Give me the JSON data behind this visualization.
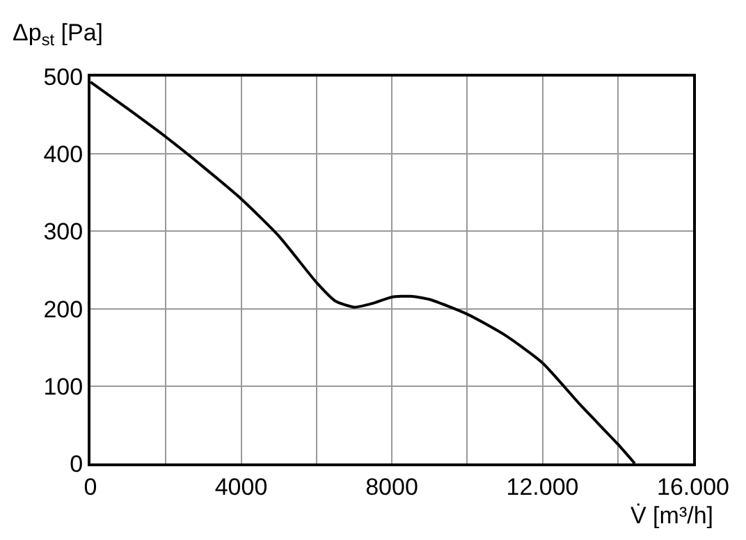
{
  "chart_data": {
    "type": "line",
    "xlabel": "V̇ [m³/h]",
    "ylabel": "Δp$_{st}$ [Pa]",
    "x": [
      0,
      1000,
      2000,
      3000,
      4000,
      5000,
      6000,
      6500,
      7000,
      7500,
      8000,
      8500,
      9000,
      10000,
      11000,
      12000,
      13000,
      14000,
      14450
    ],
    "series": [
      {
        "color": "#000000",
        "values": [
          493,
          458,
          422,
          383,
          342,
          294,
          234,
          210,
          202,
          207,
          215,
          216,
          212,
          193,
          166,
          130,
          76,
          25,
          0
        ]
      }
    ],
    "xlim": [
      0,
      16000
    ],
    "ylim": [
      0,
      500
    ],
    "xticks": [
      0,
      {
        "value": 2000,
        "label": null
      },
      4000,
      {
        "value": 6000,
        "label": null
      },
      8000,
      {
        "value": 10000,
        "label": null
      },
      {
        "value": 12000,
        "label": "12.000"
      },
      {
        "value": 14000,
        "label": null
      },
      {
        "value": 16000,
        "label": "16.000"
      }
    ],
    "yticks": [
      0,
      100,
      200,
      300,
      400,
      500
    ],
    "grid": true,
    "marker": "none",
    "line_style": "solid"
  }
}
